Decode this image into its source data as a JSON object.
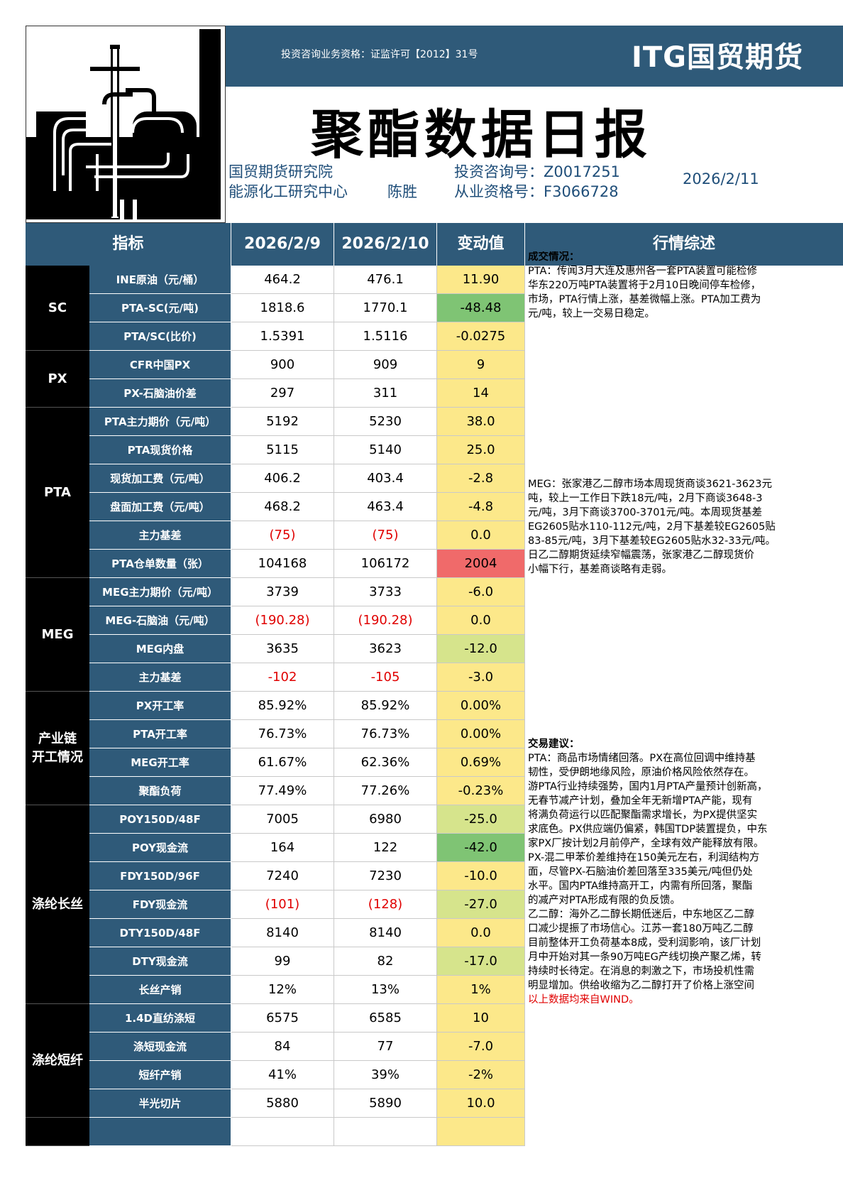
{
  "header": {
    "license": "投资咨询业务资格：证监许可【2012】31号",
    "brand": "ITG国贸期货",
    "title": "聚酯数据日报",
    "institute": "国贸期货研究院",
    "center": "能源化工研究中心",
    "author": "陈胜",
    "consult_no": "投资咨询号：Z0017251",
    "practice_no": "从业资格号：F3066728",
    "date": "2026/2/11"
  },
  "columns": [
    "指标",
    "2026/2/9",
    "2026/2/10",
    "变动值",
    "行情综述"
  ],
  "colors": {
    "brand_blue": "#2f5a79",
    "yellow": "#fce88a",
    "light_green": "#d6e48c",
    "green": "#7fc474",
    "red": "#f06a6a",
    "neg_text": "#e00000"
  },
  "groups": [
    {
      "label": "SC",
      "rows": 3
    },
    {
      "label": "PX",
      "rows": 2
    },
    {
      "label": "PTA",
      "rows": 6
    },
    {
      "label": "MEG",
      "rows": 4
    },
    {
      "label": "产业链\n开工情况",
      "rows": 4
    },
    {
      "label": "涤纶长丝",
      "rows": 7
    },
    {
      "label": "涤纶短纤",
      "rows": 4
    },
    {
      "label": "",
      "rows": 1
    }
  ],
  "rows": [
    {
      "name": "INE原油（元/桶）",
      "v1": "464.2",
      "v2": "476.1",
      "change": "11.90",
      "tone": "yellow"
    },
    {
      "name": "PTA-SC(元/吨)",
      "v1": "1818.6",
      "v2": "1770.1",
      "change": "-48.48",
      "tone": "green"
    },
    {
      "name": "PTA/SC(比价)",
      "v1": "1.5391",
      "v2": "1.5116",
      "change": "-0.0275",
      "tone": "yellow"
    },
    {
      "name": "CFR中国PX",
      "v1": "900",
      "v2": "909",
      "change": "9",
      "tone": "yellow"
    },
    {
      "name": "PX-石脑油价差",
      "v1": "297",
      "v2": "311",
      "change": "14",
      "tone": "yellow"
    },
    {
      "name": "PTA主力期价（元/吨）",
      "v1": "5192",
      "v2": "5230",
      "change": "38.0",
      "tone": "yellow"
    },
    {
      "name": "PTA现货价格",
      "v1": "5115",
      "v2": "5140",
      "change": "25.0",
      "tone": "yellow"
    },
    {
      "name": "现货加工费（元/吨）",
      "v1": "406.2",
      "v2": "403.4",
      "change": "-2.8",
      "tone": "yellow"
    },
    {
      "name": "盘面加工费（元/吨）",
      "v1": "468.2",
      "v2": "463.4",
      "change": "-4.8",
      "tone": "yellow"
    },
    {
      "name": "主力基差",
      "v1": "(75)",
      "v2": "(75)",
      "change": "0.0",
      "tone": "yellow",
      "neg": true
    },
    {
      "name": "PTA仓单数量（张）",
      "v1": "104168",
      "v2": "106172",
      "change": "2004",
      "tone": "red"
    },
    {
      "name": "MEG主力期价（元/吨）",
      "v1": "3739",
      "v2": "3733",
      "change": "-6.0",
      "tone": "yellow"
    },
    {
      "name": "MEG-石脑油（元/吨）",
      "v1": "(190.28)",
      "v2": "(190.28)",
      "change": "0.0",
      "tone": "yellow",
      "neg": true
    },
    {
      "name": "MEG内盘",
      "v1": "3635",
      "v2": "3623",
      "change": "-12.0",
      "tone": "light_green"
    },
    {
      "name": "主力基差",
      "v1": "-102",
      "v2": "-105",
      "change": "-3.0",
      "tone": "yellow",
      "neg": true
    },
    {
      "name": "PX开工率",
      "v1": "85.92%",
      "v2": "85.92%",
      "change": "0.00%",
      "tone": "yellow"
    },
    {
      "name": "PTA开工率",
      "v1": "76.73%",
      "v2": "76.73%",
      "change": "0.00%",
      "tone": "yellow"
    },
    {
      "name": "MEG开工率",
      "v1": "61.67%",
      "v2": "62.36%",
      "change": "0.69%",
      "tone": "yellow"
    },
    {
      "name": "聚酯负荷",
      "v1": "77.49%",
      "v2": "77.26%",
      "change": "-0.23%",
      "tone": "yellow"
    },
    {
      "name": "POY150D/48F",
      "v1": "7005",
      "v2": "6980",
      "change": "-25.0",
      "tone": "light_green"
    },
    {
      "name": "POY现金流",
      "v1": "164",
      "v2": "122",
      "change": "-42.0",
      "tone": "green"
    },
    {
      "name": "FDY150D/96F",
      "v1": "7240",
      "v2": "7230",
      "change": "-10.0",
      "tone": "yellow"
    },
    {
      "name": "FDY现金流",
      "v1": "(101)",
      "v2": "(128)",
      "change": "-27.0",
      "tone": "light_green",
      "neg": true
    },
    {
      "name": "DTY150D/48F",
      "v1": "8140",
      "v2": "8140",
      "change": "0.0",
      "tone": "yellow"
    },
    {
      "name": "DTY现金流",
      "v1": "99",
      "v2": "82",
      "change": "-17.0",
      "tone": "light_green"
    },
    {
      "name": "长丝产销",
      "v1": "12%",
      "v2": "13%",
      "change": "1%",
      "tone": "yellow"
    },
    {
      "name": "1.4D直纺涤短",
      "v1": "6575",
      "v2": "6585",
      "change": "10",
      "tone": "yellow"
    },
    {
      "name": "涤短现金流",
      "v1": "84",
      "v2": "77",
      "change": "-7.0",
      "tone": "yellow"
    },
    {
      "name": "短纤产销",
      "v1": "41%",
      "v2": "39%",
      "change": "-2%",
      "tone": "yellow"
    },
    {
      "name": "半光切片",
      "v1": "5880",
      "v2": "5890",
      "change": "10.0",
      "tone": "yellow"
    },
    {
      "name": "",
      "v1": "",
      "v2": "",
      "change": "",
      "tone": "yellow"
    }
  ],
  "summary": {
    "deal_title": "成交情况：",
    "pta_lines": [
      "PTA：传闻3月大连及惠州各一套PTA装置可能检修",
      "华东220万吨PTA装置将于2月10日晚间停车检修，",
      "市场，PTA行情上涨，基差微幅上涨。PTA加工费为",
      "元/吨，较上一交易日稳定。"
    ],
    "meg_lines": [
      "MEG：张家港乙二醇市场本周现货商谈3621-3623元",
      "吨，较上一工作日下跌18元/吨，2月下商谈3648-3",
      "元/吨，3月下商谈3700-3701元/吨。本周现货基差",
      "EG2605贴水110-112元/吨，2月下基差较EG2605贴",
      "83-85元/吨，3月下基差较EG2605贴水32-33元/吨。",
      "日乙二醇期货延续窄幅震荡，张家港乙二醇现货价",
      "小幅下行，基差商谈略有走弱。"
    ],
    "advice_title": "交易建议：",
    "advice_pta_lines": [
      "PTA：商品市场情绪回落。PX在高位回调中维持基",
      "韧性，受伊朗地缘风险，原油价格风险依然存在。",
      "游PTA行业持续强势，国内1月PTA产量预计创新高，",
      "无春节减产计划，叠加全年无新增PTA产能，现有",
      "将满负荷运行以匹配聚酯需求增长，为PX提供坚实",
      "求底色。PX供应端仍偏紧，韩国TDP装置提负，中东",
      "家PX厂按计划2月前停产，全球有效产能释放有限。",
      "PX-混二甲苯价差维持在150美元左右，利润结构方",
      "面，尽管PX-石脑油价差回落至335美元/吨但仍处",
      "水平。国内PTA维持高开工，内需有所回落，聚酯",
      "的减产对PTA形成有限的负反馈。"
    ],
    "advice_meg_lines": [
      "乙二醇：海外乙二醇长期低迷后，中东地区乙二醇",
      "口减少提振了市场信心。江苏一套180万吨乙二醇",
      "目前整体开工负荷基本8成，受利润影响，该厂计划",
      "月中开始对其一条90万吨EG产线切换产聚乙烯，转",
      "持续时长待定。在消息的刺激之下，市场投机性需",
      "明显增加。供给收缩为乙二醇打开了价格上涨空间"
    ],
    "source": "以上数据均来自WIND。"
  }
}
